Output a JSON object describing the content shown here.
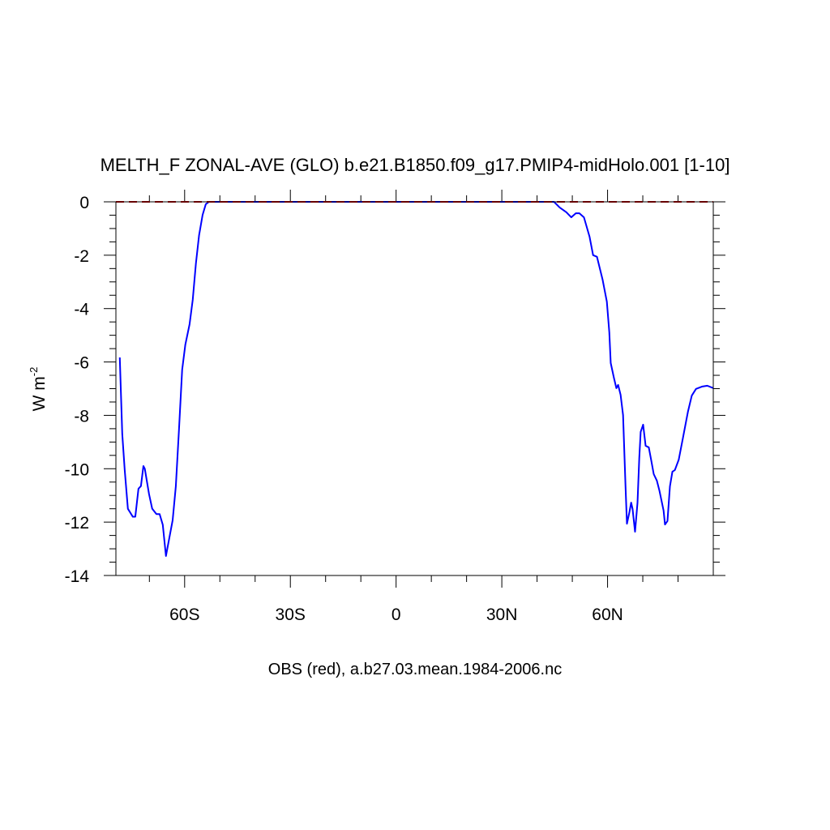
{
  "chart_data": {
    "type": "line",
    "title": "MELTH_F ZONAL-AVE (GLO) b.e21.B1850.f09_g17.PMIP4-midHolo.001 [1-10]",
    "xlabel": "OBS (red), a.b27.03.mean.1984-2006.nc",
    "ylabel": {
      "text": "W m",
      "superscript": "-2"
    },
    "xlim": [
      -79.5,
      90
    ],
    "ylim": [
      -14,
      0
    ],
    "xticks": [
      {
        "value": -60,
        "label": "60S"
      },
      {
        "value": -30,
        "label": "30S"
      },
      {
        "value": 0,
        "label": "0"
      },
      {
        "value": 30,
        "label": "30N"
      },
      {
        "value": 60,
        "label": "60N"
      }
    ],
    "xminorticks": [
      -70,
      -50,
      -40,
      -20,
      -10,
      10,
      20,
      40,
      50,
      70,
      80
    ],
    "yticks": [
      0,
      -2,
      -4,
      -6,
      -8,
      -10,
      -12,
      -14
    ],
    "yminorticks": [
      -0.5,
      -1,
      -1.5,
      -2.5,
      -3,
      -3.5,
      -4.5,
      -5,
      -5.5,
      -6.5,
      -7,
      -7.5,
      -8.5,
      -9,
      -9.5,
      -10.5,
      -11,
      -11.5,
      -12.5,
      -13,
      -13.5
    ],
    "grid": false,
    "series": [
      {
        "color": "#0000ff",
        "dash": false,
        "x": [
          -78.4,
          -77.7,
          -77.0,
          -76.1,
          -74.7,
          -74.0,
          -73.1,
          -72.4,
          -71.7,
          -71.3,
          -70.1,
          -69.2,
          -68.0,
          -67.1,
          -66.2,
          -65.3,
          -64.4,
          -63.4,
          -62.5,
          -61.6,
          -60.7,
          -59.8,
          -58.6,
          -57.7,
          -56.8,
          -55.9,
          -54.9,
          -54.0,
          -53.1,
          44.8,
          46.4,
          48.3,
          49.7,
          51.0,
          52.0,
          53.3,
          54.9,
          55.9,
          57.0,
          58.6,
          59.8,
          60.5,
          60.9,
          61.8,
          62.5,
          63.0,
          63.7,
          64.4,
          65.1,
          65.5,
          66.2,
          66.7,
          67.1,
          67.8,
          68.5,
          69.0,
          69.4,
          70.1,
          70.8,
          71.7,
          72.4,
          73.1,
          74.0,
          74.7,
          75.9,
          76.3,
          77.0,
          77.7,
          78.4,
          79.1,
          80.2,
          81.4,
          82.8,
          83.9,
          85.1,
          86.9,
          88.3,
          90.0
        ],
        "values": [
          -5.83,
          -8.7,
          -10.05,
          -11.5,
          -11.8,
          -11.8,
          -10.75,
          -10.65,
          -9.9,
          -10.0,
          -10.95,
          -11.5,
          -11.7,
          -11.7,
          -12.1,
          -13.27,
          -12.63,
          -11.93,
          -10.66,
          -8.53,
          -6.29,
          -5.35,
          -4.59,
          -3.67,
          -2.31,
          -1.25,
          -0.49,
          -0.09,
          0,
          0,
          -0.21,
          -0.39,
          -0.58,
          -0.43,
          -0.43,
          -0.58,
          -1.31,
          -2.0,
          -2.06,
          -2.92,
          -3.74,
          -4.89,
          -6.04,
          -6.59,
          -6.98,
          -6.86,
          -7.23,
          -7.99,
          -10.66,
          -12.06,
          -11.63,
          -11.27,
          -11.51,
          -12.36,
          -11.27,
          -9.6,
          -8.62,
          -8.35,
          -9.14,
          -9.2,
          -9.69,
          -10.2,
          -10.45,
          -10.81,
          -11.57,
          -12.09,
          -11.96,
          -10.66,
          -10.11,
          -10.05,
          -9.66,
          -8.84,
          -7.87,
          -7.26,
          -7.01,
          -6.92,
          -6.89,
          -6.98
        ]
      },
      {
        "color": "#cc0000",
        "dash": true,
        "x": [
          -79.5,
          90
        ],
        "values": [
          0,
          0
        ]
      }
    ]
  }
}
